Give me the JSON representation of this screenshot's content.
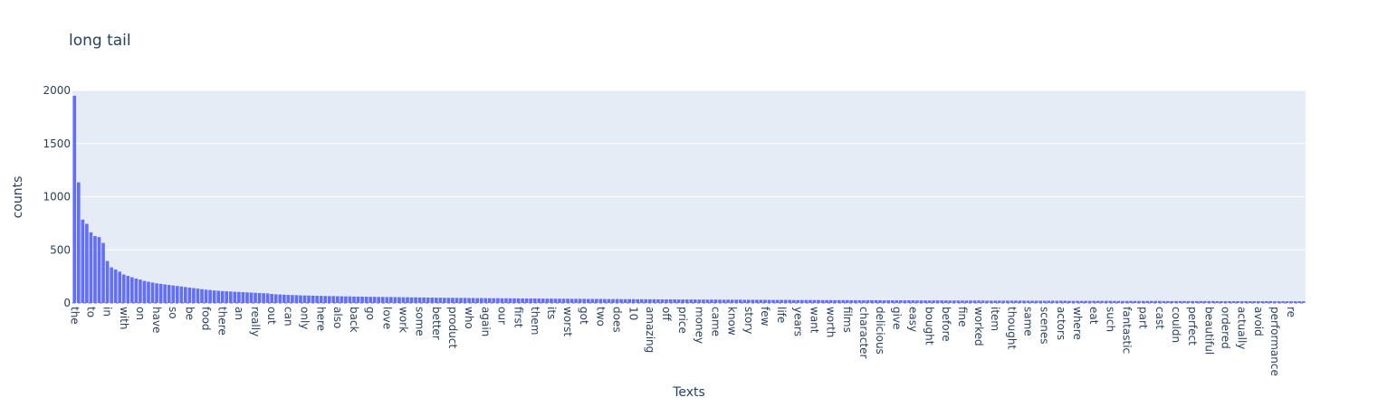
{
  "chart_data": {
    "type": "bar",
    "title": "long tail",
    "xlabel": "Texts",
    "ylabel": "counts",
    "ylim": [
      0,
      2000
    ],
    "yticks": [
      0,
      500,
      1000,
      1500,
      2000
    ],
    "grid": true,
    "bar_color": "#636efa",
    "plot_background": "#e5ecf6",
    "bar_count": 300,
    "tick_every": 4,
    "head_values": [
      1950,
      1135,
      785,
      745,
      665,
      630,
      620,
      565,
      395,
      335,
      315,
      295,
      268,
      255,
      242,
      230,
      220,
      208,
      200,
      192,
      185,
      180,
      175,
      170,
      165,
      160,
      155,
      150,
      145,
      140,
      135,
      130,
      125,
      122,
      118,
      115,
      112,
      110,
      108,
      106,
      104,
      102,
      100,
      98,
      96,
      94,
      92
    ],
    "tail_curve": {
      "from": 90,
      "to": 16
    },
    "categories_labeled": [
      "the",
      "to",
      "in",
      "with",
      "on",
      "have",
      "so",
      "be",
      "food",
      "there",
      "an",
      "really",
      "out",
      "can",
      "only",
      "here",
      "also",
      "back",
      "go",
      "love",
      "work",
      "some",
      "better",
      "product",
      "who",
      "again",
      "our",
      "first",
      "them",
      "its",
      "worst",
      "got",
      "two",
      "does",
      "10",
      "amazing",
      "off",
      "price",
      "money",
      "came",
      "know",
      "story",
      "few",
      "life",
      "years",
      "want",
      "worth",
      "films",
      "character",
      "delicious",
      "give",
      "easy",
      "bought",
      "before",
      "fine",
      "worked",
      "item",
      "thought",
      "same",
      "scenes",
      "actors",
      "where",
      "eat",
      "such",
      "fantastic",
      "part",
      "cast",
      "couldn",
      "perfect",
      "beautiful",
      "ordered",
      "actually",
      "avoid",
      "performance",
      "re"
    ]
  }
}
